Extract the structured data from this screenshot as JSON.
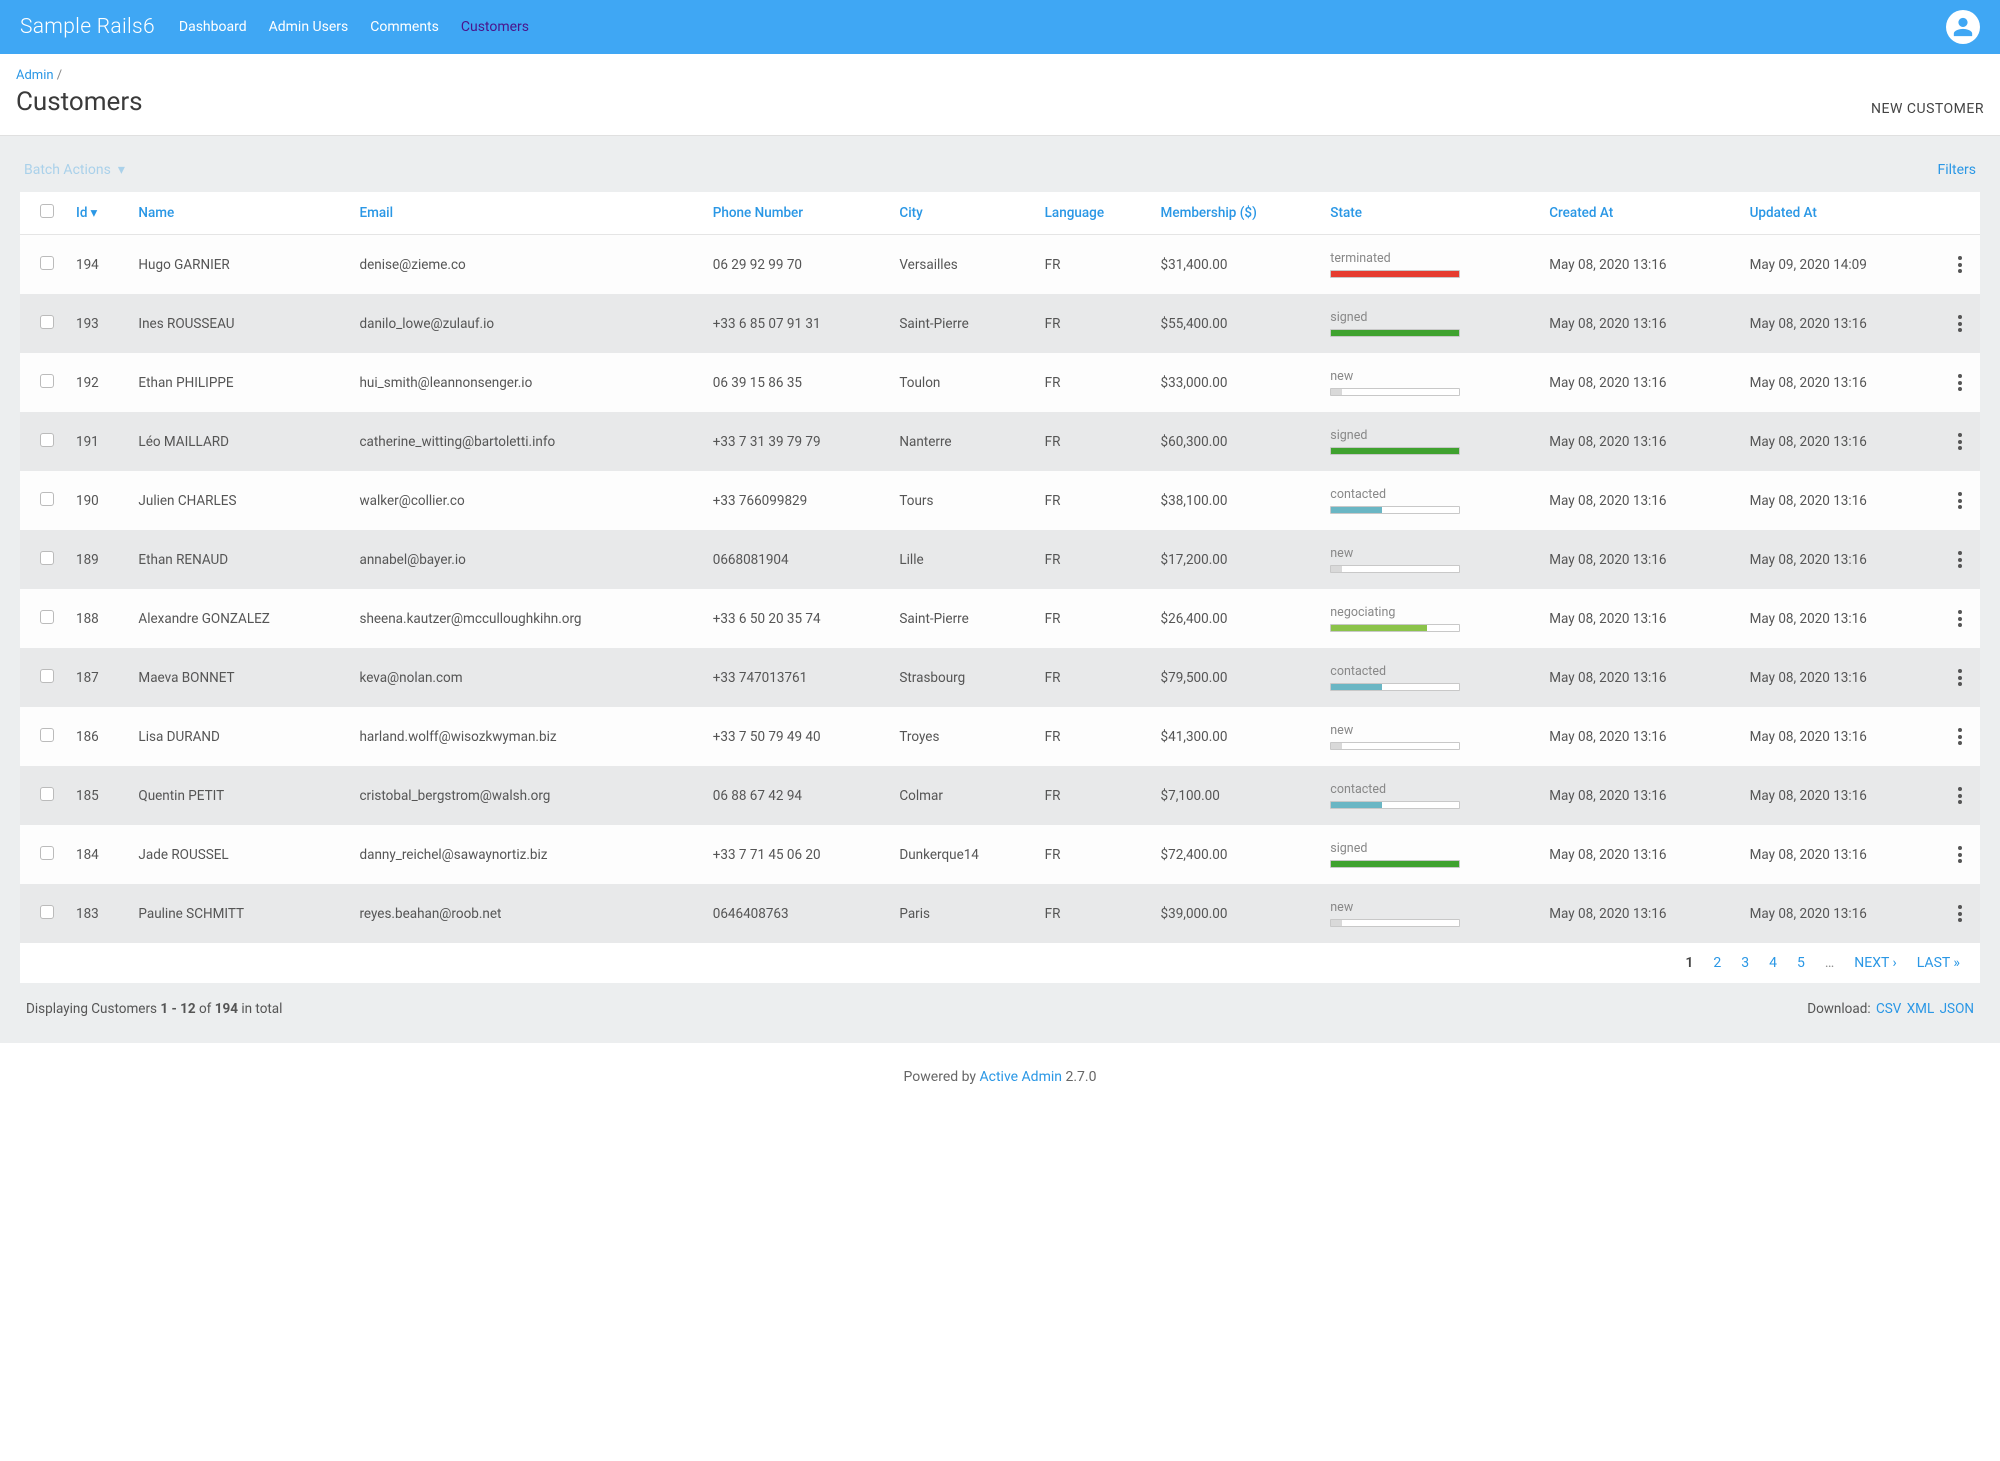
{
  "colors": {
    "primary": "#3fa7f4",
    "link": "#2a97e5",
    "nav_active": "#4a148c",
    "row_alt": "#e8e9ea",
    "content_bg": "#eceeef",
    "state_colors": {
      "terminated": "#e63c2f",
      "signed": "#3fa22f",
      "new": "#d9d9d9",
      "contacted": "#6ab6c4",
      "negociating": "#8bc34a"
    }
  },
  "nav": {
    "brand": "Sample Rails6",
    "items": [
      "Dashboard",
      "Admin Users",
      "Comments",
      "Customers"
    ],
    "active_index": 3
  },
  "breadcrumb": {
    "parent": "Admin",
    "sep": "/"
  },
  "page_title": "Customers",
  "new_button": "NEW CUSTOMER",
  "toolbar": {
    "batch_label": "Batch Actions",
    "filters_label": "Filters"
  },
  "columns": [
    {
      "key": "check",
      "label": ""
    },
    {
      "key": "id",
      "label": "Id",
      "sorted": "desc"
    },
    {
      "key": "name",
      "label": "Name"
    },
    {
      "key": "email",
      "label": "Email"
    },
    {
      "key": "phone",
      "label": "Phone Number"
    },
    {
      "key": "city",
      "label": "City"
    },
    {
      "key": "language",
      "label": "Language"
    },
    {
      "key": "membership",
      "label": "Membership ($)"
    },
    {
      "key": "state",
      "label": "State"
    },
    {
      "key": "created",
      "label": "Created At"
    },
    {
      "key": "updated",
      "label": "Updated At"
    },
    {
      "key": "actions",
      "label": ""
    }
  ],
  "state_progress": {
    "terminated": 100,
    "signed": 100,
    "new": 8,
    "contacted": 40,
    "negociating": 75
  },
  "rows": [
    {
      "id": "194",
      "name": "Hugo GARNIER",
      "email": "denise@zieme.co",
      "phone": "06 29 92 99 70",
      "city": "Versailles",
      "language": "FR",
      "membership": "$31,400.00",
      "state": "terminated",
      "created": "May 08, 2020 13:16",
      "updated": "May 09, 2020 14:09"
    },
    {
      "id": "193",
      "name": "Ines ROUSSEAU",
      "email": "danilo_lowe@zulauf.io",
      "phone": "+33 6 85 07 91 31",
      "city": "Saint-Pierre",
      "language": "FR",
      "membership": "$55,400.00",
      "state": "signed",
      "created": "May 08, 2020 13:16",
      "updated": "May 08, 2020 13:16"
    },
    {
      "id": "192",
      "name": "Ethan PHILIPPE",
      "email": "hui_smith@leannonsenger.io",
      "phone": "06 39 15 86 35",
      "city": "Toulon",
      "language": "FR",
      "membership": "$33,000.00",
      "state": "new",
      "created": "May 08, 2020 13:16",
      "updated": "May 08, 2020 13:16"
    },
    {
      "id": "191",
      "name": "Léo MAILLARD",
      "email": "catherine_witting@bartoletti.info",
      "phone": "+33 7 31 39 79 79",
      "city": "Nanterre",
      "language": "FR",
      "membership": "$60,300.00",
      "state": "signed",
      "created": "May 08, 2020 13:16",
      "updated": "May 08, 2020 13:16"
    },
    {
      "id": "190",
      "name": "Julien CHARLES",
      "email": "walker@collier.co",
      "phone": "+33 766099829",
      "city": "Tours",
      "language": "FR",
      "membership": "$38,100.00",
      "state": "contacted",
      "created": "May 08, 2020 13:16",
      "updated": "May 08, 2020 13:16"
    },
    {
      "id": "189",
      "name": "Ethan RENAUD",
      "email": "annabel@bayer.io",
      "phone": "0668081904",
      "city": "Lille",
      "language": "FR",
      "membership": "$17,200.00",
      "state": "new",
      "created": "May 08, 2020 13:16",
      "updated": "May 08, 2020 13:16"
    },
    {
      "id": "188",
      "name": "Alexandre GONZALEZ",
      "email": "sheena.kautzer@mcculloughkihn.org",
      "phone": "+33 6 50 20 35 74",
      "city": "Saint-Pierre",
      "language": "FR",
      "membership": "$26,400.00",
      "state": "negociating",
      "created": "May 08, 2020 13:16",
      "updated": "May 08, 2020 13:16"
    },
    {
      "id": "187",
      "name": "Maeva BONNET",
      "email": "keva@nolan.com",
      "phone": "+33 747013761",
      "city": "Strasbourg",
      "language": "FR",
      "membership": "$79,500.00",
      "state": "contacted",
      "created": "May 08, 2020 13:16",
      "updated": "May 08, 2020 13:16"
    },
    {
      "id": "186",
      "name": "Lisa DURAND",
      "email": "harland.wolff@wisozkwyman.biz",
      "phone": "+33 7 50 79 49 40",
      "city": "Troyes",
      "language": "FR",
      "membership": "$41,300.00",
      "state": "new",
      "created": "May 08, 2020 13:16",
      "updated": "May 08, 2020 13:16"
    },
    {
      "id": "185",
      "name": "Quentin PETIT",
      "email": "cristobal_bergstrom@walsh.org",
      "phone": "06 88 67 42 94",
      "city": "Colmar",
      "language": "FR",
      "membership": "$7,100.00",
      "state": "contacted",
      "created": "May 08, 2020 13:16",
      "updated": "May 08, 2020 13:16"
    },
    {
      "id": "184",
      "name": "Jade ROUSSEL",
      "email": "danny_reichel@sawaynortiz.biz",
      "phone": "+33 7 71 45 06 20",
      "city": "Dunkerque14",
      "language": "FR",
      "membership": "$72,400.00",
      "state": "signed",
      "created": "May 08, 2020 13:16",
      "updated": "May 08, 2020 13:16"
    },
    {
      "id": "183",
      "name": "Pauline SCHMITT",
      "email": "reyes.beahan@roob.net",
      "phone": "0646408763",
      "city": "Paris",
      "language": "FR",
      "membership": "$39,000.00",
      "state": "new",
      "created": "May 08, 2020 13:16",
      "updated": "May 08, 2020 13:16"
    }
  ],
  "pagination": {
    "pages": [
      "1",
      "2",
      "3",
      "4",
      "5",
      "…"
    ],
    "current": "1",
    "next": "NEXT ›",
    "last": "LAST »"
  },
  "summary": {
    "prefix": "Displaying Customers ",
    "range": "1 - 12",
    "mid": " of ",
    "total": "194",
    "suffix": " in total"
  },
  "download": {
    "label": "Download:",
    "formats": [
      "CSV",
      "XML",
      "JSON"
    ]
  },
  "powered": {
    "prefix": "Powered by ",
    "name": "Active Admin",
    "version": " 2.7.0"
  }
}
